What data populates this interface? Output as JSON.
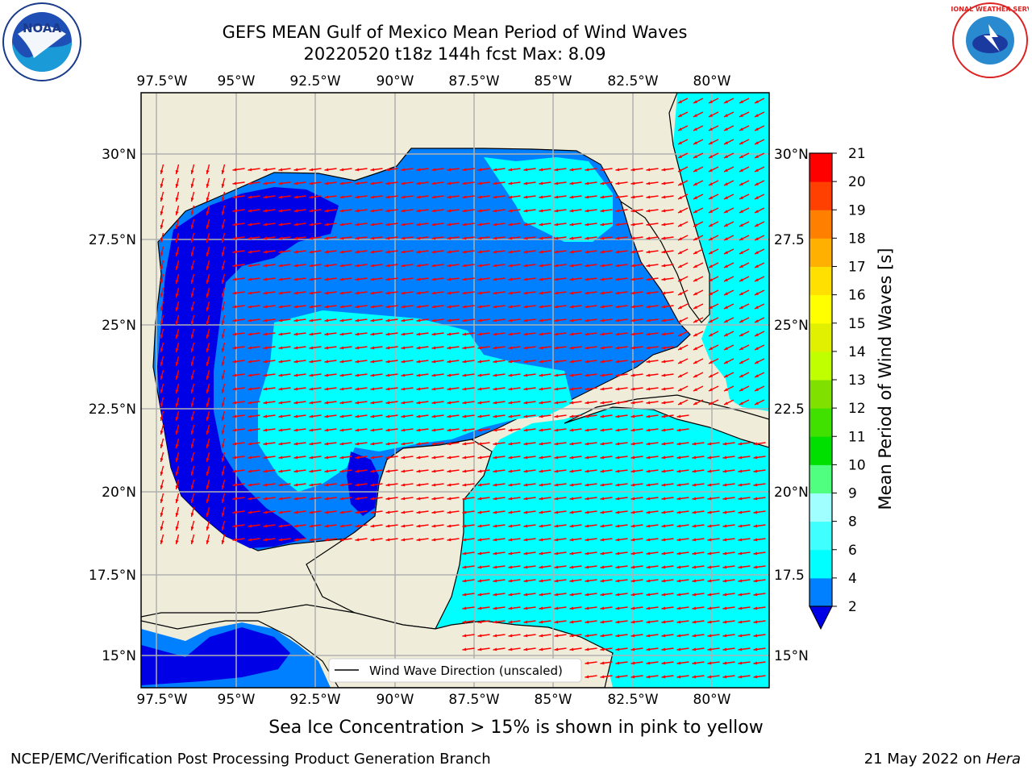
{
  "header": {
    "title_line1": "GEFS MEAN Gulf of Mexico Mean Period of Wind Waves",
    "title_line2": "20220520 t18z 144h fcst   Max: 8.09"
  },
  "map": {
    "lon_labels": [
      "97.5°W",
      "95°W",
      "92.5°W",
      "90°W",
      "87.5°W",
      "85°W",
      "82.5°W",
      "80°W"
    ],
    "lat_labels": [
      "30°N",
      "27.5°N",
      "25°N",
      "22.5°N",
      "20°N",
      "17.5°N",
      "15°N"
    ],
    "right_lat_labels": [
      "30°N",
      "27.5",
      "25°N",
      "22.5",
      "20°N",
      "17.5",
      "15°N"
    ],
    "legend_label": "Wind Wave Direction (unscaled)",
    "colors": {
      "land": "#efedda",
      "period_2_4": "#0080ff",
      "period_4_6": "#00ffff",
      "period_lt_2": "#0000e6",
      "arrow": "#ff0000"
    }
  },
  "colorbar": {
    "label": "Mean Period of Wind Waves [s]",
    "ticks": [
      "2",
      "4",
      "6",
      "8",
      "9",
      "10",
      "11",
      "12",
      "13",
      "14",
      "15",
      "16",
      "17",
      "18",
      "19",
      "20",
      "21"
    ],
    "colors": [
      "#0080ff",
      "#00ffff",
      "#40ffff",
      "#a0ffff",
      "#50ff80",
      "#00e000",
      "#40e000",
      "#80e000",
      "#c0ff00",
      "#e0f000",
      "#ffff00",
      "#ffe000",
      "#ffb000",
      "#ff8000",
      "#ff4000",
      "#ff0000"
    ],
    "under_color": "#0000e6"
  },
  "footer": {
    "note": "Sea Ice Concentration > 15% is shown in pink to yellow",
    "credit": "NCEP/EMC/Verification Post Processing Product Generation Branch",
    "date": "21 May 2022 on ",
    "machine": "Hera"
  },
  "logos": {
    "noaa_text": "NOAA",
    "nws_text": "NATIONAL WEATHER SERVICE"
  }
}
